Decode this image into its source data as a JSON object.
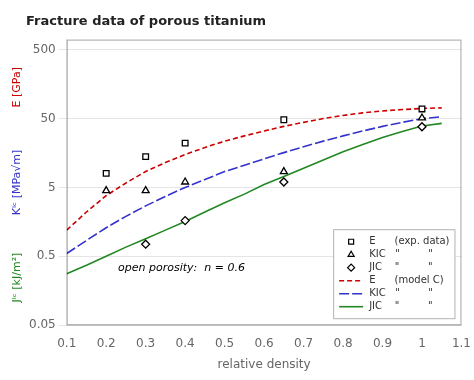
{
  "chart_data": {
    "type": "line",
    "title": "Fracture data of porous titanium",
    "xlabel": "relative density",
    "ylabel": [
      {
        "text": "E [GPa]",
        "color": "#cc0000"
      },
      {
        "text": "Kᴵᶜ [MPa√m]",
        "color": "#3333cc"
      },
      {
        "text": "Jᴵᶜ [kJ/m²]",
        "color": "#228822"
      }
    ],
    "annotation": "open porosity:  n = 0.6",
    "log": "y",
    "xlim": [
      0.1,
      1.1
    ],
    "xticks": [
      0.1,
      0.2,
      0.3,
      0.4,
      0.5,
      0.6,
      0.7,
      0.8,
      0.9,
      1.0,
      1.1
    ],
    "ylim": [
      0.05,
      700
    ],
    "yticks": [
      0.05,
      0.5,
      5,
      50,
      500
    ],
    "grid": "y",
    "legend": "lower right",
    "series": [
      {
        "name": "E      (exp. data)",
        "color": "#000000",
        "marker": "square",
        "line_style": "none",
        "x": [
          0.2,
          0.3,
          0.4,
          0.65,
          1.0
        ],
        "values": [
          8.0,
          14.0,
          22.0,
          48.0,
          69.0
        ]
      },
      {
        "name": "KIC   \"         \"",
        "color": "#000000",
        "marker": "triangle",
        "line_style": "none",
        "x": [
          0.2,
          0.3,
          0.4,
          0.65,
          1.0
        ],
        "values": [
          4.5,
          4.5,
          6.0,
          8.5,
          51.0
        ]
      },
      {
        "name": "JIC    \"         \"",
        "color": "#000000",
        "marker": "diamond",
        "line_style": "none",
        "x": [
          0.3,
          0.4,
          0.65,
          1.0
        ],
        "values": [
          0.75,
          1.65,
          6.0,
          38.0
        ]
      },
      {
        "name": "E      (model C)",
        "color": "#cc0000",
        "line_style": "dashed",
        "x": [
          0.1,
          0.15,
          0.2,
          0.25,
          0.3,
          0.35,
          0.4,
          0.45,
          0.5,
          0.55,
          0.6,
          0.65,
          0.7,
          0.75,
          0.8,
          0.85,
          0.9,
          0.95,
          1.0,
          1.05
        ],
        "values": [
          1.2,
          2.2,
          3.8,
          5.8,
          8.5,
          11.5,
          15.0,
          19.0,
          23.5,
          28.0,
          33.0,
          38.5,
          44.0,
          50.0,
          55.5,
          60.5,
          64.5,
          67.5,
          70.0,
          71.5
        ]
      },
      {
        "name": "KIC   \"         \"",
        "color": "#3333cc",
        "line_style": "long_dashed",
        "x": [
          0.1,
          0.15,
          0.2,
          0.25,
          0.3,
          0.35,
          0.4,
          0.45,
          0.5,
          0.55,
          0.6,
          0.65,
          0.7,
          0.75,
          0.8,
          0.85,
          0.9,
          0.95,
          1.0,
          1.05
        ],
        "values": [
          0.55,
          0.85,
          1.3,
          1.9,
          2.7,
          3.7,
          5.0,
          6.5,
          8.5,
          10.5,
          13.0,
          16.0,
          19.5,
          23.5,
          28.0,
          33.0,
          38.5,
          44.0,
          50.0,
          53.0
        ]
      },
      {
        "name": "JIC    \"         \"",
        "color": "#228822",
        "line_style": "solid",
        "x": [
          0.1,
          0.15,
          0.2,
          0.25,
          0.3,
          0.35,
          0.4,
          0.45,
          0.5,
          0.55,
          0.6,
          0.65,
          0.7,
          0.75,
          0.8,
          0.85,
          0.9,
          0.95,
          1.0,
          1.05
        ],
        "values": [
          0.28,
          0.37,
          0.5,
          0.68,
          0.9,
          1.2,
          1.6,
          2.2,
          3.0,
          4.0,
          5.5,
          7.2,
          9.5,
          12.5,
          16.5,
          21.0,
          26.5,
          32.5,
          39.0,
          42.5
        ]
      }
    ]
  }
}
